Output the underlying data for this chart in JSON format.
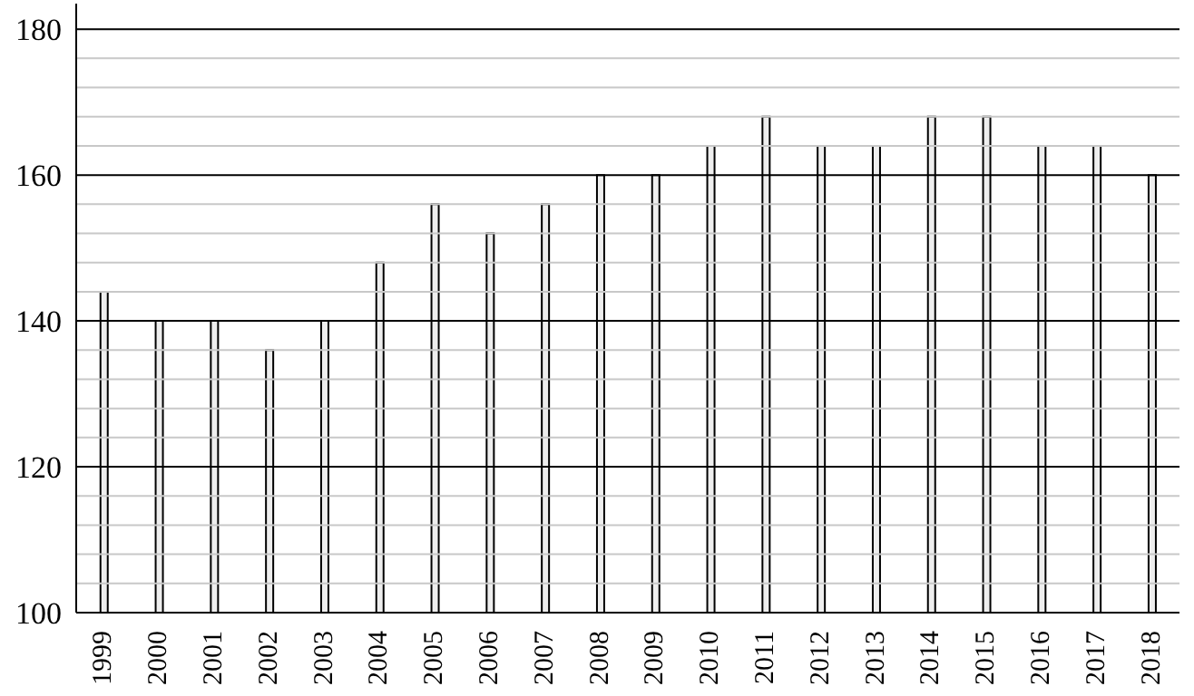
{
  "chart_data": {
    "type": "bar",
    "categories": [
      "1999",
      "2000",
      "2001",
      "2002",
      "2003",
      "2004",
      "2005",
      "2006",
      "2007",
      "2008",
      "2009",
      "2010",
      "2011",
      "2012",
      "2013",
      "2014",
      "2015",
      "2016",
      "2017",
      "2018"
    ],
    "values": [
      144,
      140,
      140,
      136,
      140,
      148,
      156,
      152,
      156,
      160,
      160,
      164,
      168,
      164,
      164,
      168,
      168,
      164,
      164,
      160
    ],
    "color": "#eeeeee",
    "ylim": [
      100,
      183.5
    ],
    "yticks": [
      100,
      {
        "value": 104,
        "label": null
      },
      {
        "value": 108,
        "label": null
      },
      {
        "value": 112,
        "label": null
      },
      {
        "value": 116,
        "label": null
      },
      120,
      {
        "value": 124,
        "label": null
      },
      {
        "value": 128,
        "label": null
      },
      {
        "value": 132,
        "label": null
      },
      {
        "value": 136,
        "label": null
      },
      140,
      {
        "value": 144,
        "label": null
      },
      {
        "value": 148,
        "label": null
      },
      {
        "value": 152,
        "label": null
      },
      {
        "value": 156,
        "label": null
      },
      160,
      {
        "value": 164,
        "label": null
      },
      {
        "value": 168,
        "label": null
      },
      {
        "value": 172,
        "label": null
      },
      {
        "value": 176,
        "label": null
      },
      180
    ],
    "grid": "y"
  }
}
